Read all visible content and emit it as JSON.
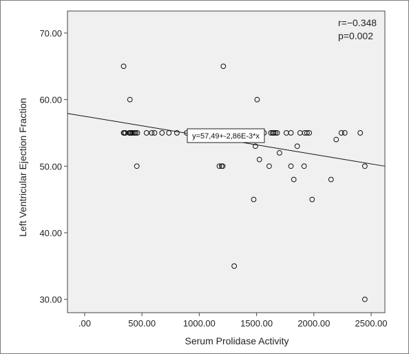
{
  "chart_data": {
    "type": "scatter",
    "xlabel": "Serum Prolidase Activity",
    "ylabel": "Left Ventricular Ejection Fraction",
    "xlim": [
      -150,
      2620
    ],
    "ylim": [
      28,
      73.3
    ],
    "x_ticks": [
      0,
      500,
      1000,
      1500,
      2000,
      2500
    ],
    "x_tick_labels": [
      ".00",
      "500.00",
      "1000.00",
      "1500.00",
      "2000.00",
      "2500.00"
    ],
    "y_ticks": [
      30,
      40,
      50,
      60,
      70
    ],
    "y_tick_labels": [
      "30.00",
      "40.00",
      "50.00",
      "60.00",
      "70.00"
    ],
    "grid": false,
    "annotations": [
      "r=−0.348",
      "p=0.002"
    ],
    "fit_line": {
      "label": "y=57,49+-2,86E-3*x",
      "intercept": 57.49,
      "slope": -0.00286
    },
    "points": [
      [
        340,
        65
      ],
      [
        395,
        60
      ],
      [
        1210,
        65
      ],
      [
        1505,
        60
      ],
      [
        340,
        55
      ],
      [
        345,
        55
      ],
      [
        355,
        55
      ],
      [
        390,
        55
      ],
      [
        395,
        55
      ],
      [
        400,
        55
      ],
      [
        410,
        55
      ],
      [
        420,
        55
      ],
      [
        435,
        55
      ],
      [
        445,
        55
      ],
      [
        460,
        55
      ],
      [
        540,
        55
      ],
      [
        585,
        55
      ],
      [
        610,
        55
      ],
      [
        675,
        55
      ],
      [
        735,
        55
      ],
      [
        805,
        55
      ],
      [
        890,
        55
      ],
      [
        1005,
        55
      ],
      [
        1095,
        55
      ],
      [
        1135,
        55
      ],
      [
        1170,
        55
      ],
      [
        1185,
        55
      ],
      [
        1195,
        55
      ],
      [
        1205,
        55
      ],
      [
        1210,
        55
      ],
      [
        1240,
        55
      ],
      [
        1275,
        55
      ],
      [
        1300,
        55
      ],
      [
        1320,
        55
      ],
      [
        1345,
        55
      ],
      [
        1370,
        55
      ],
      [
        1395,
        55
      ],
      [
        1425,
        55
      ],
      [
        1455,
        55
      ],
      [
        1470,
        55
      ],
      [
        1495,
        55
      ],
      [
        1520,
        55
      ],
      [
        1545,
        55
      ],
      [
        1565,
        55
      ],
      [
        1625,
        55
      ],
      [
        1640,
        55
      ],
      [
        1650,
        55
      ],
      [
        1665,
        55
      ],
      [
        1680,
        55
      ],
      [
        1760,
        55
      ],
      [
        1800,
        55
      ],
      [
        1880,
        55
      ],
      [
        1920,
        55
      ],
      [
        1940,
        55
      ],
      [
        1960,
        55
      ],
      [
        2240,
        55
      ],
      [
        2270,
        55
      ],
      [
        2405,
        55
      ],
      [
        1490,
        53
      ],
      [
        1855,
        53
      ],
      [
        2195,
        54
      ],
      [
        1525,
        51
      ],
      [
        1700,
        52
      ],
      [
        455,
        50
      ],
      [
        1175,
        50
      ],
      [
        1195,
        50
      ],
      [
        1205,
        50
      ],
      [
        1610,
        50
      ],
      [
        1800,
        50
      ],
      [
        1915,
        50
      ],
      [
        2445,
        50
      ],
      [
        1825,
        48
      ],
      [
        2150,
        48
      ],
      [
        1475,
        45
      ],
      [
        1985,
        45
      ],
      [
        1305,
        35
      ],
      [
        2445,
        30
      ]
    ]
  }
}
